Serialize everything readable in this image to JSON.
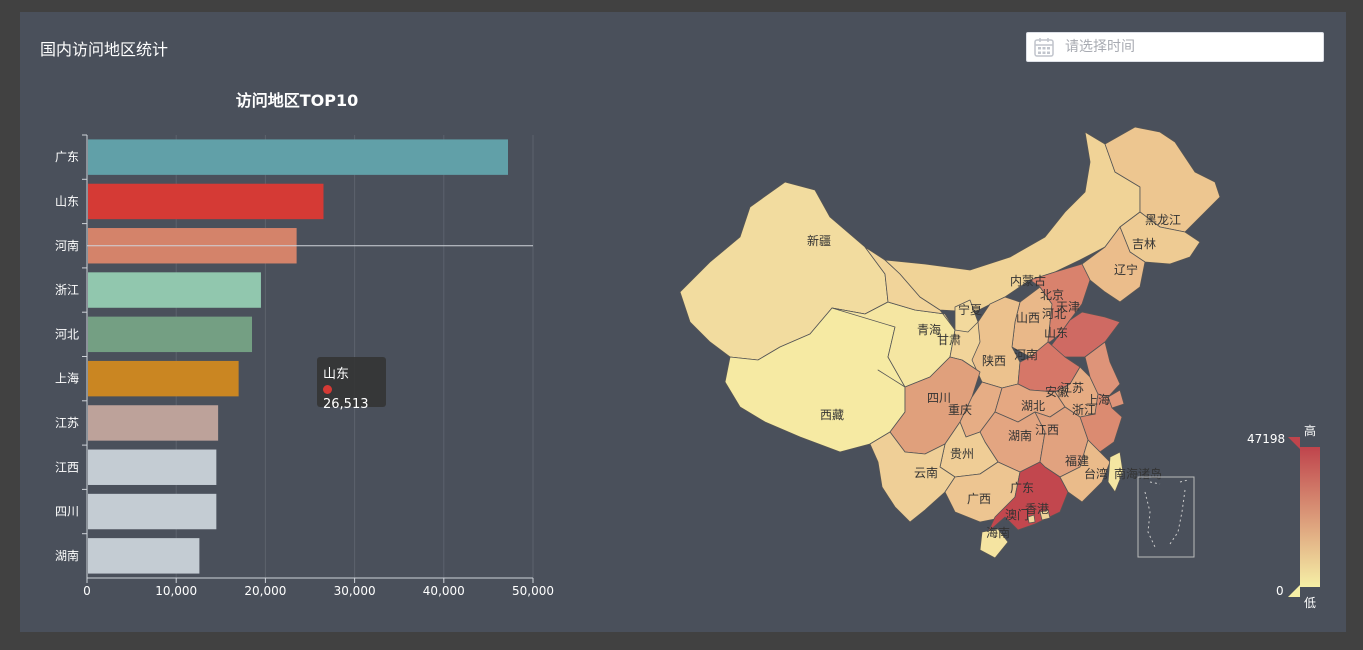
{
  "page_title": "国内访问地区统计",
  "date_picker": {
    "placeholder": "请选择时间"
  },
  "colors": {
    "panel": "#4a505b",
    "axis": "#cfd3da",
    "grid": "#5c626d",
    "visual_low": "#f6efa6",
    "visual_high": "#bf444c"
  },
  "chart_data": [
    {
      "type": "bar",
      "orientation": "horizontal",
      "title": "访问地区TOP10",
      "categories": [
        "广东",
        "山东",
        "河南",
        "浙江",
        "河北",
        "上海",
        "江苏",
        "江西",
        "四川",
        "湖南"
      ],
      "values": [
        47198,
        26513,
        23500,
        19500,
        18500,
        17000,
        14700,
        14500,
        14500,
        12600
      ],
      "bar_colors": [
        "#61a0a8",
        "#d53a35",
        "#d4836a",
        "#91c7ae",
        "#749f83",
        "#ca8622",
        "#bda29a",
        "#c4ccd3",
        "#c4ccd3",
        "#c4ccd3"
      ],
      "xlim": [
        0,
        50000
      ],
      "xticks": [
        "0",
        "10,000",
        "20,000",
        "30,000",
        "40,000",
        "50,000"
      ],
      "tooltip": {
        "name": "山东",
        "value": "26,513",
        "color": "#d53a35"
      }
    },
    {
      "type": "map",
      "region": "china",
      "visual_map": {
        "min": "0",
        "max": "47198",
        "high_label": "高",
        "low_label": "低"
      },
      "regions": [
        {
          "name": "新疆",
          "color": "#f2dc9f"
        },
        {
          "name": "西藏",
          "color": "#f6eaa3"
        },
        {
          "name": "青海",
          "color": "#f5e6a2"
        },
        {
          "name": "甘肃",
          "color": "#f1d49a"
        },
        {
          "name": "内蒙古",
          "color": "#f0d397"
        },
        {
          "name": "黑龙江",
          "color": "#edc690"
        },
        {
          "name": "吉林",
          "color": "#eecb93"
        },
        {
          "name": "辽宁",
          "color": "#ebbd8b"
        },
        {
          "name": "宁夏",
          "color": "#f2d99d"
        },
        {
          "name": "陕西",
          "color": "#ecc28e"
        },
        {
          "name": "山西",
          "color": "#e9b889"
        },
        {
          "name": "北京",
          "color": "#e0997a"
        },
        {
          "name": "天津",
          "color": "#e6ab82"
        },
        {
          "name": "河北",
          "color": "#d9826d"
        },
        {
          "name": "山东",
          "color": "#cf6a63"
        },
        {
          "name": "河南",
          "color": "#d67768"
        },
        {
          "name": "安徽",
          "color": "#e6ac83"
        },
        {
          "name": "江苏",
          "color": "#de9479"
        },
        {
          "name": "上海",
          "color": "#de9479"
        },
        {
          "name": "浙江",
          "color": "#db8b71"
        },
        {
          "name": "四川",
          "color": "#e0a07c"
        },
        {
          "name": "重庆",
          "color": "#e6ad85"
        },
        {
          "name": "湖北",
          "color": "#e5a882"
        },
        {
          "name": "湖南",
          "color": "#e3a581"
        },
        {
          "name": "江西",
          "color": "#e1a27f"
        },
        {
          "name": "贵州",
          "color": "#efcd96"
        },
        {
          "name": "云南",
          "color": "#efcf97"
        },
        {
          "name": "广西",
          "color": "#edc591"
        },
        {
          "name": "广东",
          "color": "#c2474e"
        },
        {
          "name": "福建",
          "color": "#eabb8a"
        },
        {
          "name": "台湾",
          "color": "#f5e6a2"
        },
        {
          "name": "香港",
          "color": "#f0d397"
        },
        {
          "name": "澳门",
          "color": "#f2d99d"
        },
        {
          "name": "海南",
          "color": "#f5e4a1"
        },
        {
          "name": "南海诸岛",
          "color": "#4a505b"
        }
      ]
    }
  ]
}
